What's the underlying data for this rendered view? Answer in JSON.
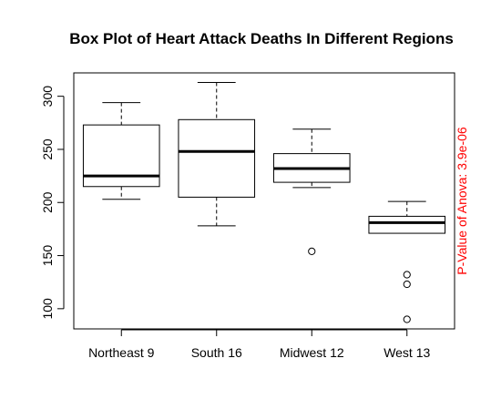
{
  "chart_data": {
    "type": "box",
    "title": "Box Plot of Heart Attack Deaths In Different Regions",
    "xlabel": "",
    "ylabel": "",
    "categories": [
      "Northeast 9",
      "South 16",
      "Midwest 12",
      "West 13"
    ],
    "boxes": [
      {
        "name": "Northeast 9",
        "whisker_low": 203,
        "q1": 215,
        "median": 225,
        "q3": 273,
        "whisker_high": 294,
        "outliers": []
      },
      {
        "name": "South 16",
        "whisker_low": 178,
        "q1": 205,
        "median": 248,
        "q3": 278,
        "whisker_high": 313,
        "outliers": []
      },
      {
        "name": "Midwest 12",
        "whisker_low": 214,
        "q1": 219,
        "median": 232,
        "q3": 246,
        "whisker_high": 269,
        "outliers": [
          154
        ]
      },
      {
        "name": "West 13",
        "whisker_low": 171,
        "q1": 171,
        "median": 181,
        "q3": 187,
        "whisker_high": 201,
        "outliers": [
          132,
          123,
          90
        ]
      }
    ],
    "y_ticks": [
      100,
      150,
      200,
      250,
      300
    ],
    "ylim": [
      81,
      322
    ],
    "grid": false,
    "annotation": {
      "text": "P-Value of Anova: 3.9e-06",
      "color": "#ff0000"
    }
  }
}
